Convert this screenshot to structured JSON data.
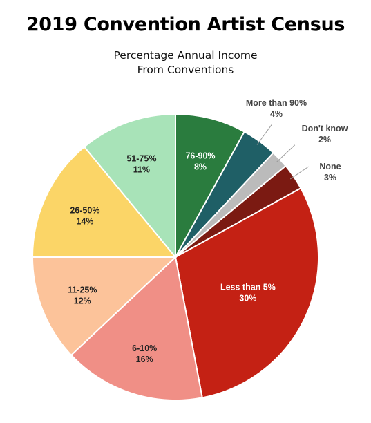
{
  "title": "2019 Convention Artist Census",
  "subtitle_line1": "Percentage Annual Income",
  "subtitle_line2": "From Conventions",
  "chart_data": {
    "type": "pie",
    "start": "12 o'clock, clockwise",
    "slices": [
      {
        "label": "76-90%",
        "value": 8,
        "color": "#2a7c3e",
        "text_color": "#ffffff",
        "callout": false
      },
      {
        "label": "More than 90%",
        "value": 4,
        "color": "#1f5f66",
        "text_color": "#444444",
        "callout": true
      },
      {
        "label": "Don't know",
        "value": 2,
        "color": "#bbbbbb",
        "text_color": "#444444",
        "callout": true
      },
      {
        "label": "None",
        "value": 3,
        "color": "#7b1a12",
        "text_color": "#444444",
        "callout": true
      },
      {
        "label": "Less than 5%",
        "value": 30,
        "color": "#c42114",
        "text_color": "#ffffff",
        "callout": false
      },
      {
        "label": "6-10%",
        "value": 16,
        "color": "#f08f86",
        "text_color": "#222222",
        "callout": false
      },
      {
        "label": "11-25%",
        "value": 12,
        "color": "#fcc39a",
        "text_color": "#222222",
        "callout": false
      },
      {
        "label": "26-50%",
        "value": 14,
        "color": "#fbd567",
        "text_color": "#222222",
        "callout": false
      },
      {
        "label": "51-75%",
        "value": 11,
        "color": "#a8e3b8",
        "text_color": "#222222",
        "callout": false
      }
    ]
  }
}
